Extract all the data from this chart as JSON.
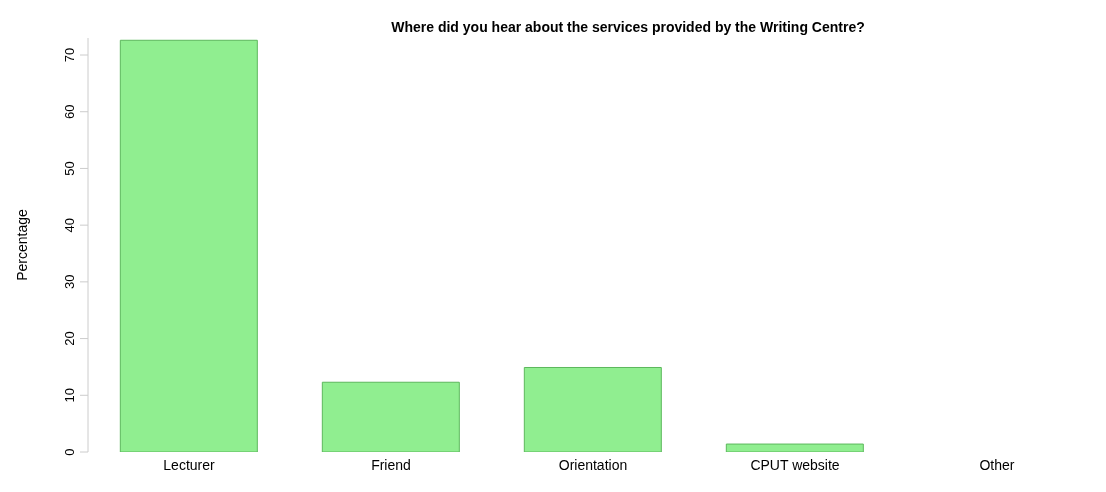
{
  "chart_data": {
    "type": "bar",
    "title": "Where did you hear about the services provided by the Writing Centre?",
    "ylabel": "Percentage",
    "categories": [
      "Lecturer",
      "Friend",
      "Orientation",
      "CPUT website",
      "Other"
    ],
    "values": [
      72.6,
      12.3,
      14.9,
      1.4,
      0
    ],
    "color": "#90ee90",
    "ylim": [
      0,
      73
    ],
    "yticks": [
      0,
      10,
      20,
      30,
      40,
      50,
      60,
      70
    ],
    "grid": false
  }
}
